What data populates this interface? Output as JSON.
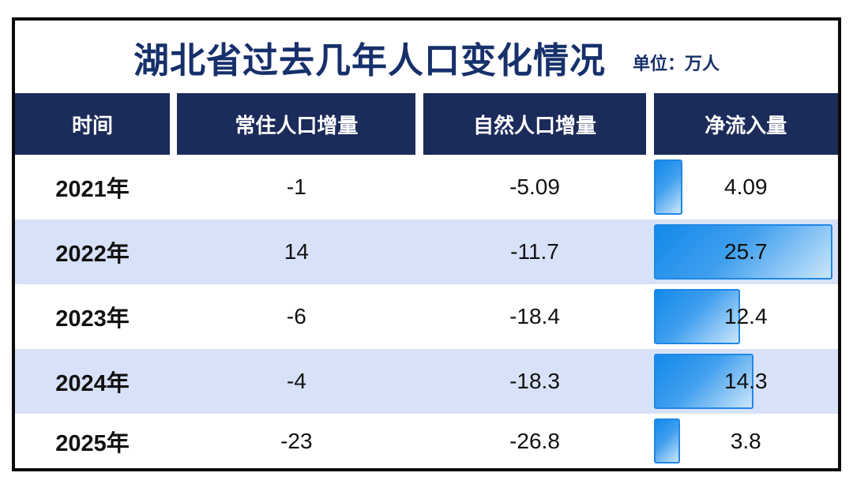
{
  "title": "湖北省过去几年人口变化情况",
  "unit_label": "单位：万人",
  "colors": {
    "title_text": "#16306b",
    "header_bg": "#1b2b5a",
    "header_text": "#ffffff",
    "stripe_row_bg": "#d7e1f8",
    "bar_border": "#1e88e5",
    "bar_gradient_start": "#1389ea",
    "bar_gradient_end": "#cbe6fb",
    "outer_border": "#0b0b0b"
  },
  "table": {
    "columns": [
      "时间",
      "常住人口增量",
      "自然人口增量",
      "净流入量"
    ],
    "rows": [
      {
        "year": "2021年",
        "resident_increment": "-1",
        "natural_increment": "-5.09",
        "net_inflow": "4.09"
      },
      {
        "year": "2022年",
        "resident_increment": "14",
        "natural_increment": "-11.7",
        "net_inflow": "25.7"
      },
      {
        "year": "2023年",
        "resident_increment": "-6",
        "natural_increment": "-18.4",
        "net_inflow": "12.4"
      },
      {
        "year": "2024年",
        "resident_increment": "-4",
        "natural_increment": "-18.3",
        "net_inflow": "14.3"
      },
      {
        "year": "2025年",
        "resident_increment": "-23",
        "natural_increment": "-26.8",
        "net_inflow": "3.8"
      }
    ]
  },
  "chart_data": {
    "type": "table",
    "title": "湖北省过去几年人口变化情况",
    "unit": "万人",
    "categories": [
      "2021年",
      "2022年",
      "2023年",
      "2024年",
      "2025年"
    ],
    "series": [
      {
        "name": "常住人口增量",
        "values": [
          -1,
          14,
          -6,
          -4,
          -23
        ]
      },
      {
        "name": "自然人口增量",
        "values": [
          -5.09,
          -11.7,
          -18.4,
          -18.3,
          -26.8
        ]
      },
      {
        "name": "净流入量",
        "values": [
          4.09,
          25.7,
          12.4,
          14.3,
          3.8
        ]
      }
    ],
    "bar_visualized_series": "净流入量",
    "bar_max": 25.7,
    "layout": "striped table, in-cell horizontal bars on last column"
  }
}
